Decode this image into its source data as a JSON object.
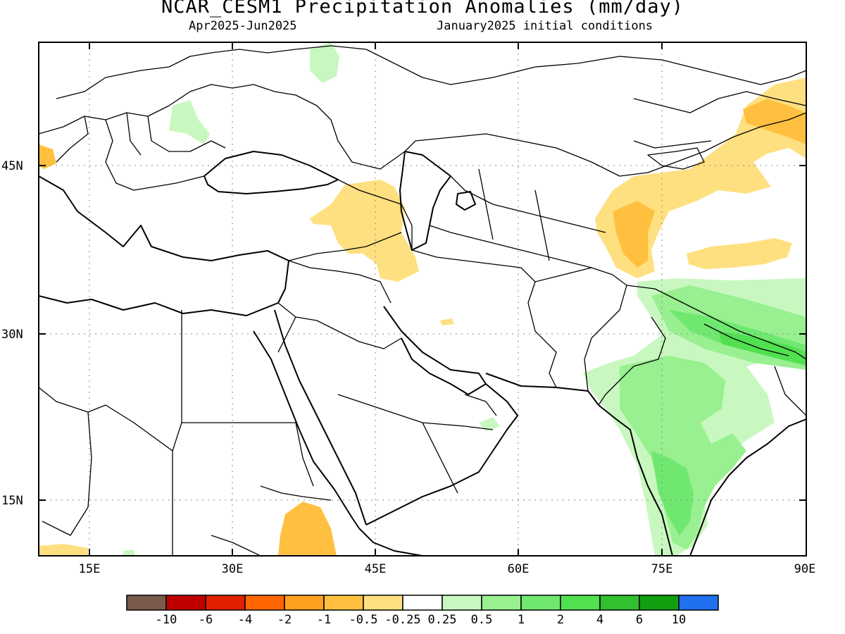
{
  "title": "NCAR_CESM1 Precipitation Anomalies (mm/day)",
  "subtitle_left": "Apr2025-Jun2025",
  "subtitle_right": "January2025 initial conditions",
  "lat_labels": [
    "45N",
    "30N",
    "15N"
  ],
  "lon_labels": [
    "15E",
    "30E",
    "45E",
    "60E",
    "75E",
    "90E"
  ],
  "colorbar": {
    "colors": [
      "#7a5a4a",
      "#c00000",
      "#e02000",
      "#ff6600",
      "#ffa020",
      "#ffc040",
      "#ffe080",
      "#ffffff",
      "#c8f8c0",
      "#98f090",
      "#70e870",
      "#50e050",
      "#30c030",
      "#10a010",
      "#2070f0"
    ],
    "labels": [
      "-10",
      "-6",
      "-4",
      "-2",
      "-1",
      "-0.5",
      "-0.25",
      "0.25",
      "0.5",
      "1",
      "2",
      "4",
      "6",
      "10"
    ]
  }
}
